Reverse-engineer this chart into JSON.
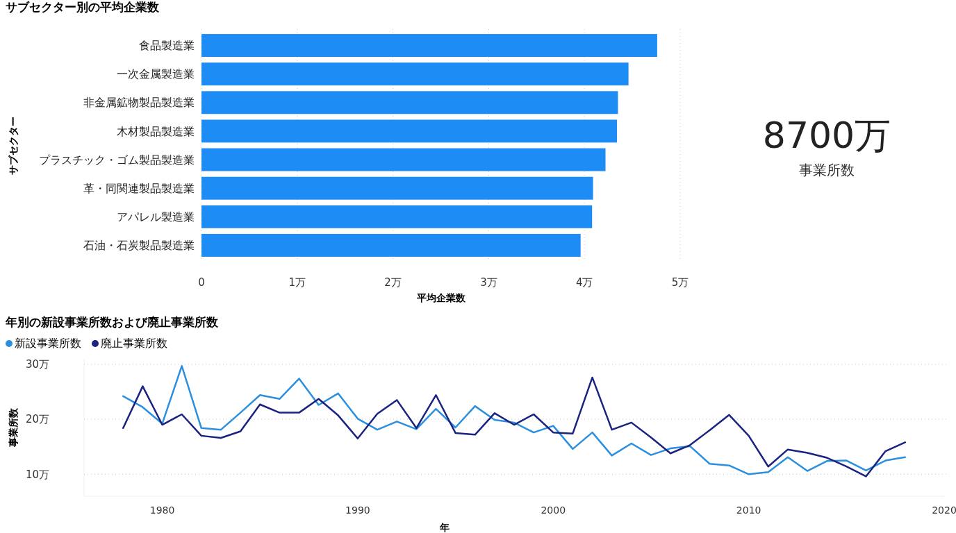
{
  "chart_data": [
    {
      "type": "bar",
      "orientation": "horizontal",
      "title": "サブセクター別の平均企業数",
      "xlabel": "平均企業数",
      "ylabel": "サブセクター",
      "categories": [
        "食品製造業",
        "一次金属製造業",
        "非金属鉱物製品製造業",
        "木材製品製造業",
        "プラスチック・ゴム製品製造業",
        "革・同関連製品製造業",
        "アパレル製造業",
        "石油・石炭製品製造業"
      ],
      "values": [
        4.76,
        4.46,
        4.35,
        4.34,
        4.22,
        4.09,
        4.08,
        3.96
      ],
      "color": "#1e8cf5",
      "xlim": [
        0,
        5
      ],
      "xticks": [
        0,
        {
          "value": 1,
          "label": "1万"
        },
        {
          "value": 2,
          "label": "2万"
        },
        {
          "value": 3,
          "label": "3万"
        },
        {
          "value": 4,
          "label": "4万"
        },
        {
          "value": 5,
          "label": "5万"
        }
      ],
      "grid": "x"
    },
    {
      "type": "other",
      "annotations": [
        "8700万",
        "事業所数"
      ]
    },
    {
      "type": "line",
      "title": "年別の新設事業所数および廃止事業所数",
      "xlabel": "年",
      "ylabel": "事業所数",
      "x": [
        1978,
        1979,
        1980,
        1981,
        1982,
        1983,
        1984,
        1985,
        1986,
        1987,
        1988,
        1989,
        1990,
        1991,
        1992,
        1993,
        1994,
        1995,
        1996,
        1997,
        1998,
        1999,
        2000,
        2001,
        2002,
        2003,
        2004,
        2005,
        2006,
        2007,
        2008,
        2009,
        2010,
        2011,
        2012,
        2013,
        2014,
        2015,
        2016,
        2017,
        2018
      ],
      "series": [
        {
          "name": "新設事業所数",
          "color": "#2b8fe0",
          "values": [
            24.2,
            22.2,
            19.2,
            29.7,
            18.4,
            18.1,
            21.2,
            24.4,
            23.7,
            27.4,
            22.6,
            24.7,
            20.1,
            18.1,
            19.6,
            18.2,
            21.9,
            18.5,
            22.4,
            19.9,
            19.4,
            17.6,
            18.8,
            14.6,
            17.6,
            13.4,
            15.6,
            13.5,
            14.7,
            15.1,
            11.9,
            11.6,
            10.0,
            10.4,
            13.1,
            10.6,
            12.4,
            12.5,
            10.7,
            12.5,
            13.1
          ]
        },
        {
          "name": "廃止事業所数",
          "color": "#1a2380",
          "values": [
            18.4,
            26.0,
            19.0,
            20.9,
            17.0,
            16.6,
            17.8,
            22.7,
            21.2,
            21.2,
            23.7,
            20.7,
            16.5,
            21.0,
            23.5,
            18.4,
            24.4,
            17.5,
            17.2,
            21.1,
            19.0,
            20.9,
            17.6,
            17.4,
            27.6,
            18.1,
            19.4,
            16.7,
            13.8,
            15.3,
            18.0,
            20.8,
            17.0,
            11.4,
            14.5,
            13.9,
            13.0,
            11.4,
            9.6,
            14.2,
            15.8
          ]
        }
      ],
      "xlim": [
        1976,
        2020
      ],
      "xticks": [
        1980,
        1990,
        2000,
        2010,
        2020
      ],
      "ylim": [
        6,
        31
      ],
      "yticks": [
        {
          "value": 10,
          "label": "10万"
        },
        {
          "value": 20,
          "label": "20万"
        },
        {
          "value": 30,
          "label": "30万"
        }
      ],
      "grid": "y",
      "legend": "top left",
      "marker": "none",
      "line_style": "solid"
    }
  ]
}
